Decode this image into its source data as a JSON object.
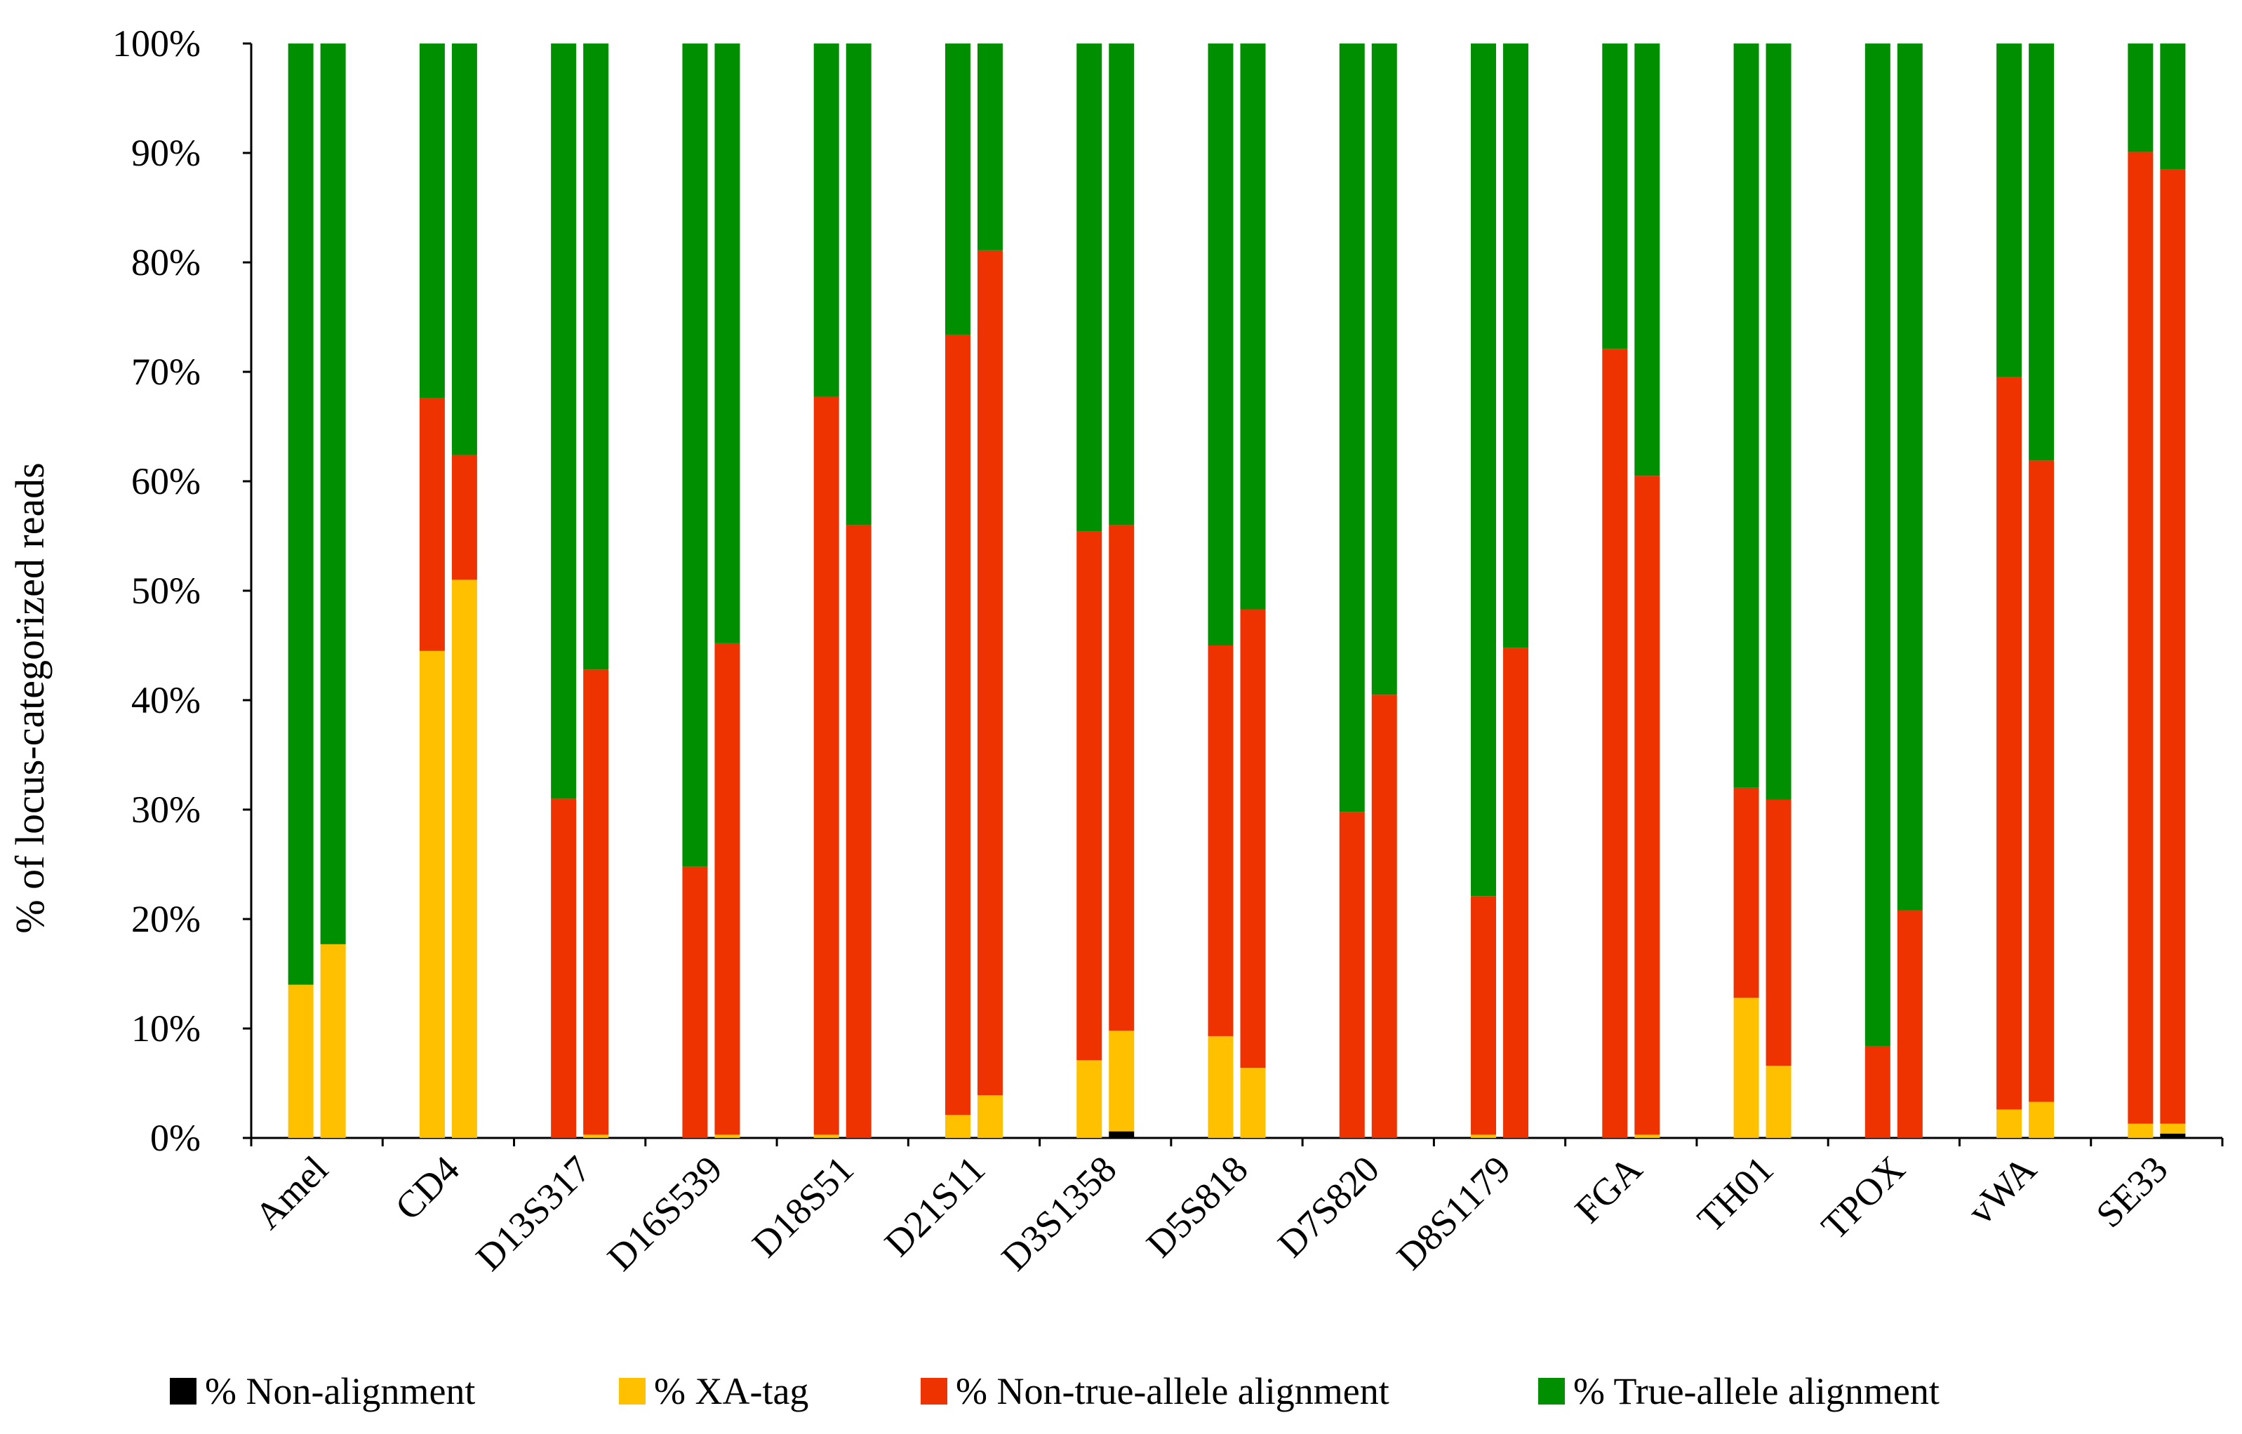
{
  "chart_data": {
    "type": "bar",
    "stacked": true,
    "title": "",
    "xlabel": "",
    "ylabel": "% of locus-categorized reads",
    "ylim": [
      0,
      100
    ],
    "y_ticks": [
      "0%",
      "10%",
      "20%",
      "30%",
      "40%",
      "50%",
      "60%",
      "70%",
      "80%",
      "90%",
      "100%"
    ],
    "categories": [
      "Amel",
      "CD4",
      "D13S317",
      "D16S539",
      "D18S51",
      "D21S11",
      "D3S1358",
      "D5S818",
      "D7S820",
      "D8S1179",
      "FGA",
      "TH01",
      "TPOX",
      "vWA",
      "SE33"
    ],
    "bars_per_category": 2,
    "legend_position": "bottom",
    "series": [
      {
        "name": "% Non-alignment",
        "color": "#000000",
        "values": [
          [
            0,
            0
          ],
          [
            0,
            0
          ],
          [
            0,
            0
          ],
          [
            0,
            0
          ],
          [
            0,
            0
          ],
          [
            0,
            0
          ],
          [
            0,
            0.6
          ],
          [
            0,
            0
          ],
          [
            0,
            0
          ],
          [
            0,
            0
          ],
          [
            0,
            0
          ],
          [
            0,
            0
          ],
          [
            0,
            0
          ],
          [
            0,
            0
          ],
          [
            0,
            0.4
          ]
        ]
      },
      {
        "name": "% XA-tag",
        "color": "#FFC000",
        "values": [
          [
            14,
            17.7
          ],
          [
            44.5,
            51
          ],
          [
            0,
            0.3
          ],
          [
            0,
            0.3
          ],
          [
            0.3,
            0
          ],
          [
            2.1,
            3.9
          ],
          [
            7.1,
            9.2
          ],
          [
            9.3,
            6.4
          ],
          [
            0,
            0
          ],
          [
            0.3,
            0
          ],
          [
            0,
            0.3
          ],
          [
            12.8,
            6.6
          ],
          [
            0,
            0
          ],
          [
            2.6,
            3.3
          ],
          [
            1.3,
            0.9
          ]
        ]
      },
      {
        "name": "% Non-true-allele alignment",
        "color": "#EE3300",
        "values": [
          [
            0,
            0
          ],
          [
            23.1,
            11.4
          ],
          [
            31,
            42.5
          ],
          [
            24.8,
            44.9
          ],
          [
            67.4,
            56
          ],
          [
            71.3,
            77.2
          ],
          [
            48.3,
            46.2
          ],
          [
            35.7,
            41.9
          ],
          [
            29.8,
            40.5
          ],
          [
            21.8,
            44.8
          ],
          [
            72.1,
            60.2
          ],
          [
            19.2,
            24.3
          ],
          [
            8.4,
            20.8
          ],
          [
            66.9,
            58.6
          ],
          [
            88.8,
            87.2
          ]
        ]
      },
      {
        "name": "% True-allele alignment",
        "color": "#008F00",
        "values": [
          [
            86,
            82.3
          ],
          [
            32.4,
            37.6
          ],
          [
            69,
            57.2
          ],
          [
            75.2,
            54.8
          ],
          [
            32.3,
            44
          ],
          [
            26.6,
            18.9
          ],
          [
            44.6,
            44
          ],
          [
            55,
            51.7
          ],
          [
            70.2,
            59.5
          ],
          [
            77.9,
            55.2
          ],
          [
            27.9,
            39.5
          ],
          [
            68,
            69.1
          ],
          [
            91.6,
            79.2
          ],
          [
            30.5,
            38.1
          ],
          [
            9.9,
            11.5
          ]
        ]
      }
    ]
  }
}
